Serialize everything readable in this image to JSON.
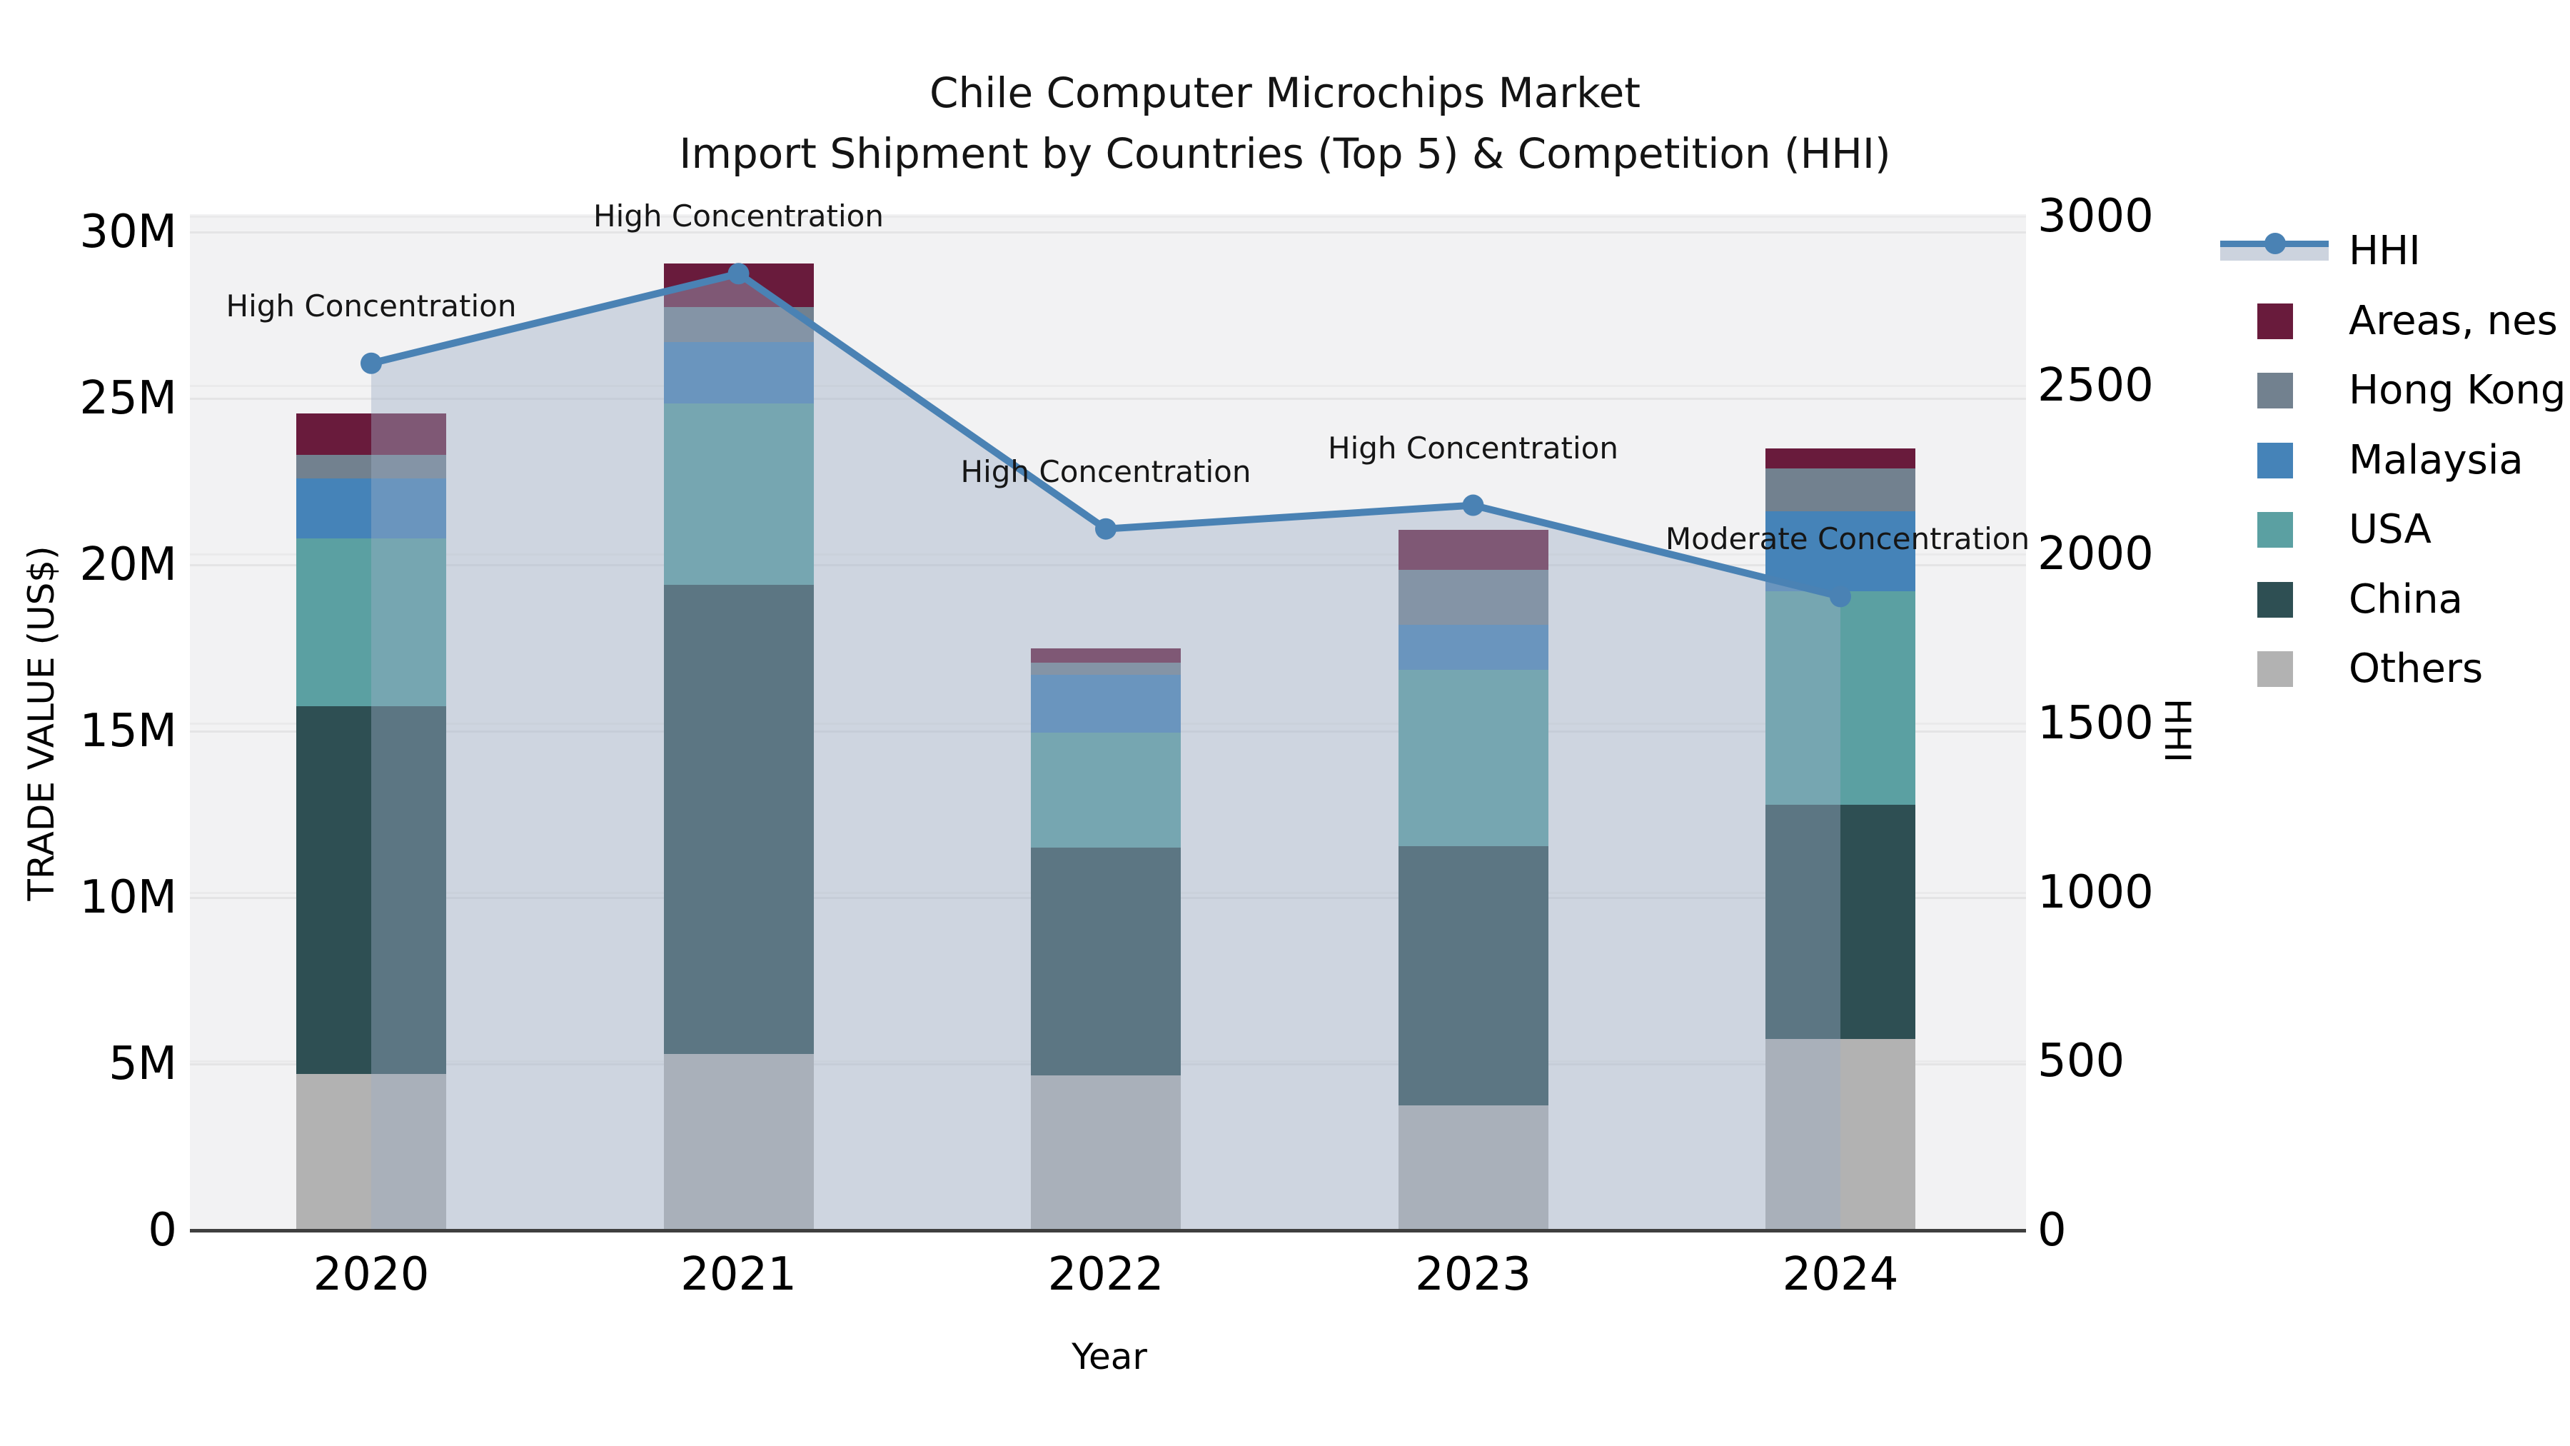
{
  "title": {
    "line1": "Chile Computer Microchips Market",
    "line2": "Import Shipment by Countries (Top 5) & Competition (HHI)"
  },
  "axes": {
    "x_label": "Year",
    "y_left_label": "TRADE VALUE (US$)",
    "y_right_label": "HHI",
    "y_left_ticks": [
      "0",
      "5M",
      "10M",
      "15M",
      "20M",
      "25M",
      "30M"
    ],
    "y_right_ticks": [
      "0",
      "500",
      "1000",
      "1500",
      "2000",
      "2500",
      "3000"
    ],
    "x_ticks": [
      "2020",
      "2021",
      "2022",
      "2023",
      "2024"
    ]
  },
  "legend": {
    "items": [
      {
        "label": "HHI",
        "type": "line",
        "color": "#4a82b4"
      },
      {
        "label": "Areas, nes",
        "type": "patch",
        "color": "#691b3c"
      },
      {
        "label": "Hong Kong",
        "type": "patch",
        "color": "#72818f"
      },
      {
        "label": "Malaysia",
        "type": "patch",
        "color": "#4583b8"
      },
      {
        "label": "USA",
        "type": "patch",
        "color": "#5ba0a2"
      },
      {
        "label": "China",
        "type": "patch",
        "color": "#2e4f53"
      },
      {
        "label": "Others",
        "type": "patch",
        "color": "#b2b2b2"
      }
    ]
  },
  "colors": {
    "Areas, nes": "#691b3c",
    "Hong Kong": "#72818f",
    "Malaysia": "#4583b8",
    "USA": "#5ba0a2",
    "China": "#2e4f53",
    "Others": "#b2b2b2",
    "hhi_line": "#4a82b4",
    "hhi_fill": "rgba(158,173,197,0.42)",
    "plot_bg": "#f2f2f3",
    "grid": "#e4e4e5",
    "axis_line": "#3f3f3f"
  },
  "chart_data": {
    "type": "combo_stacked_bar_plus_line_area",
    "title": "Chile Computer Microchips Market — Import Shipment by Countries (Top 5) & Competition (HHI)",
    "categories": [
      "2020",
      "2021",
      "2022",
      "2023",
      "2024"
    ],
    "bar_unit": "US$",
    "stack_order_bottom_to_top": [
      "Others",
      "China",
      "USA",
      "Malaysia",
      "Hong Kong",
      "Areas, nes"
    ],
    "series": [
      {
        "name": "Others",
        "values": [
          4700000,
          5300000,
          4650000,
          3750000,
          5750000
        ]
      },
      {
        "name": "China",
        "values": [
          11050000,
          14100000,
          6850000,
          7800000,
          7050000
        ]
      },
      {
        "name": "USA",
        "values": [
          5050000,
          5450000,
          3450000,
          5300000,
          6400000
        ]
      },
      {
        "name": "Malaysia",
        "values": [
          1800000,
          1850000,
          1750000,
          1350000,
          2400000
        ]
      },
      {
        "name": "Hong Kong",
        "values": [
          700000,
          1050000,
          350000,
          1650000,
          1300000
        ]
      },
      {
        "name": "Areas, nes",
        "values": [
          1250000,
          1300000,
          450000,
          1200000,
          600000
        ]
      }
    ],
    "bar_totals": [
      24550000,
      29050000,
      17500000,
      21050000,
      23500000
    ],
    "line_series": {
      "name": "HHI",
      "values": [
        2565,
        2830,
        2075,
        2145,
        1875
      ],
      "axis": "right",
      "area_fill": true
    },
    "annotations": [
      {
        "year": "2020",
        "label": "High Concentration"
      },
      {
        "year": "2021",
        "label": "High Concentration"
      },
      {
        "year": "2022",
        "label": "High Concentration"
      },
      {
        "year": "2023",
        "label": "High Concentration"
      },
      {
        "year": "2024",
        "label": "Moderate Concentration"
      }
    ],
    "ylim_left": [
      0,
      30000000
    ],
    "ylim_right": [
      0,
      3000
    ],
    "grid": true,
    "legend_position": "right"
  }
}
